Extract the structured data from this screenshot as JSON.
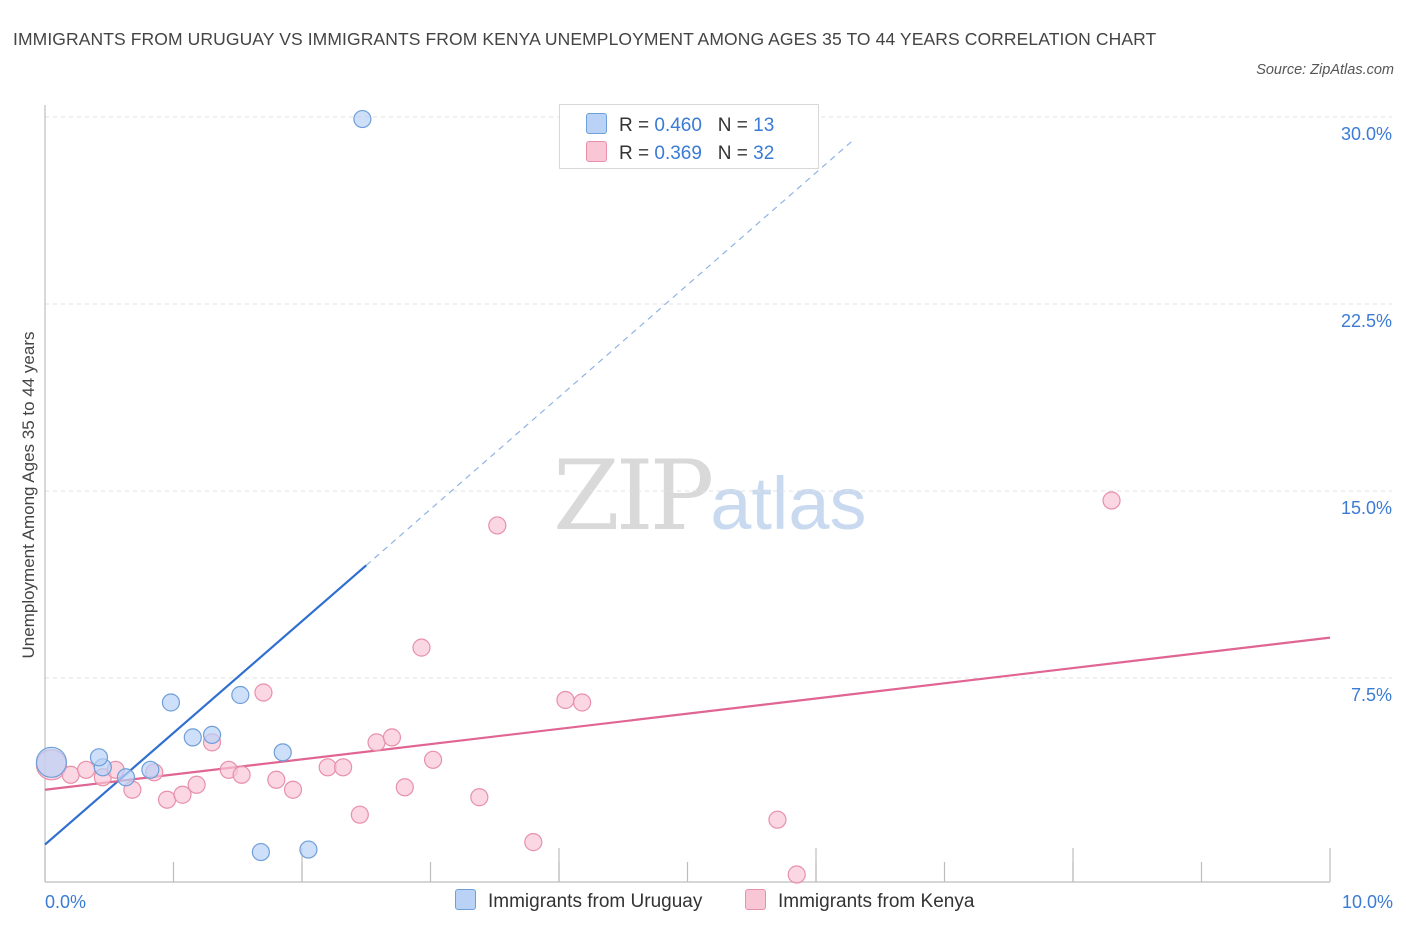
{
  "title": "IMMIGRANTS FROM URUGUAY VS IMMIGRANTS FROM KENYA UNEMPLOYMENT AMONG AGES 35 TO 44 YEARS CORRELATION CHART",
  "source": "Source: ZipAtlas.com",
  "watermark": {
    "zip": "ZIP",
    "atlas": "atlas"
  },
  "legend": {
    "uruguay": {
      "r_label": "R =",
      "r_value": "0.460",
      "n_label": "N =",
      "n_value": "13"
    },
    "kenya": {
      "r_label": "R =",
      "r_value": "0.369",
      "n_label": "N =",
      "n_value": "32"
    }
  },
  "bottom_legend": {
    "uruguay": "Immigrants from Uruguay",
    "kenya": "Immigrants from Kenya"
  },
  "colors": {
    "uruguay_fill": "#b9d2f6",
    "uruguay_stroke": "#6f9fd8",
    "uruguay_line": "#2f6fd0",
    "kenya_fill": "#f8c6d5",
    "kenya_stroke": "#e890ab",
    "kenya_line": "#e06592",
    "grid": "#e0e0e0",
    "tick_text": "#3a7bd5"
  },
  "chart_data": {
    "type": "scatter",
    "xlabel": "",
    "ylabel": "Unemployment Among Ages 35 to 44 years",
    "xlim": [
      0,
      10
    ],
    "ylim": [
      0,
      30
    ],
    "x_tick_labels": [
      {
        "value": 0,
        "label": "0.0%"
      },
      {
        "value": 10,
        "label": "10.0%"
      }
    ],
    "y_tick_labels": [
      {
        "value": 7.5,
        "label": "7.5%"
      },
      {
        "value": 15,
        "label": "15.0%"
      },
      {
        "value": 22.5,
        "label": "22.5%"
      },
      {
        "value": 30,
        "label": "30.0%"
      }
    ],
    "series": [
      {
        "name": "Immigrants from Uruguay",
        "points": [
          {
            "x": 0.05,
            "y": 4.8,
            "size": "large"
          },
          {
            "x": 0.45,
            "y": 4.6
          },
          {
            "x": 0.42,
            "y": 5.0
          },
          {
            "x": 0.63,
            "y": 4.2
          },
          {
            "x": 0.82,
            "y": 4.5
          },
          {
            "x": 0.98,
            "y": 7.2
          },
          {
            "x": 1.15,
            "y": 5.8
          },
          {
            "x": 1.3,
            "y": 5.9
          },
          {
            "x": 1.52,
            "y": 7.5
          },
          {
            "x": 1.68,
            "y": 1.2
          },
          {
            "x": 1.85,
            "y": 5.2
          },
          {
            "x": 2.05,
            "y": 1.3
          },
          {
            "x": 2.47,
            "y": 30.6
          }
        ],
        "trend": {
          "x0": 0,
          "y0": 1.5,
          "x1": 2.5,
          "y1": 12.7,
          "dash_to_x": 6.3,
          "dash_to_y": 29.8
        }
      },
      {
        "name": "Immigrants from Kenya",
        "points": [
          {
            "x": 0.05,
            "y": 4.7,
            "size": "large"
          },
          {
            "x": 0.2,
            "y": 4.3
          },
          {
            "x": 0.32,
            "y": 4.5
          },
          {
            "x": 0.45,
            "y": 4.2
          },
          {
            "x": 0.55,
            "y": 4.5
          },
          {
            "x": 0.68,
            "y": 3.7
          },
          {
            "x": 0.85,
            "y": 4.4
          },
          {
            "x": 0.95,
            "y": 3.3
          },
          {
            "x": 1.07,
            "y": 3.5
          },
          {
            "x": 1.18,
            "y": 3.9
          },
          {
            "x": 1.3,
            "y": 5.6
          },
          {
            "x": 1.43,
            "y": 4.5
          },
          {
            "x": 1.53,
            "y": 4.3
          },
          {
            "x": 1.7,
            "y": 7.6
          },
          {
            "x": 1.8,
            "y": 4.1
          },
          {
            "x": 1.93,
            "y": 3.7
          },
          {
            "x": 2.2,
            "y": 4.6
          },
          {
            "x": 2.32,
            "y": 4.6
          },
          {
            "x": 2.45,
            "y": 2.7
          },
          {
            "x": 2.58,
            "y": 5.6
          },
          {
            "x": 2.7,
            "y": 5.8
          },
          {
            "x": 2.8,
            "y": 3.8
          },
          {
            "x": 2.93,
            "y": 9.4
          },
          {
            "x": 3.02,
            "y": 4.9
          },
          {
            "x": 3.38,
            "y": 3.4
          },
          {
            "x": 3.52,
            "y": 14.3
          },
          {
            "x": 3.8,
            "y": 1.6
          },
          {
            "x": 4.05,
            "y": 7.3
          },
          {
            "x": 4.18,
            "y": 7.2
          },
          {
            "x": 5.7,
            "y": 2.5
          },
          {
            "x": 5.85,
            "y": 0.3
          },
          {
            "x": 8.3,
            "y": 15.3
          }
        ],
        "trend": {
          "x0": 0,
          "y0": 3.7,
          "x1": 10,
          "y1": 9.8
        }
      }
    ]
  }
}
